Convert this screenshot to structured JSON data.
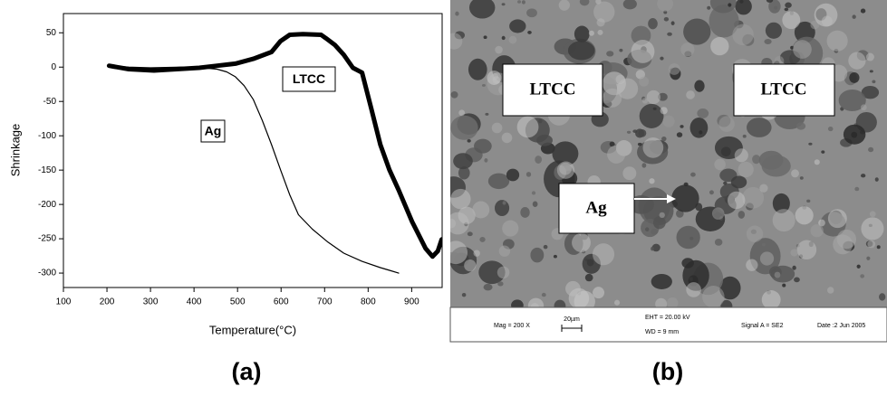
{
  "chart_data": {
    "type": "line",
    "x_label": "Temperature(°C)",
    "y_label": "Shrinkage",
    "xlim": [
      100,
      970
    ],
    "xticks": [
      100,
      200,
      300,
      400,
      500,
      600,
      700,
      800,
      900
    ],
    "ylim": [
      -321,
      78
    ],
    "yticks": [
      50,
      0,
      -50,
      -100,
      -150,
      -200,
      -250,
      -300
    ],
    "series": [
      {
        "name": "LTCC",
        "color": "#000000",
        "x": [
          205,
          214,
          250,
          308,
          360,
          412,
          453,
          495,
          536,
          578,
          599,
          620,
          650,
          692,
          703,
          724,
          744,
          765,
          786,
          807,
          828,
          849,
          870,
          901,
          932,
          948,
          960,
          969
        ],
        "values": [
          2,
          1,
          -3,
          -5,
          -3,
          -1,
          2,
          5,
          12,
          22,
          38,
          47,
          48,
          47,
          42,
          32,
          18,
          -1,
          -8,
          -60,
          -113,
          -150,
          -179,
          -225,
          -264,
          -276,
          -268,
          -251
        ]
      },
      {
        "name": "Ag",
        "color": "#000000",
        "x": [
          205,
          250,
          300,
          370,
          420,
          453,
          475,
          495,
          515,
          536,
          557,
          578,
          599,
          620,
          640,
          672,
          708,
          744,
          786,
          828,
          849,
          870
        ],
        "values": [
          2,
          0,
          -1,
          0,
          -1,
          -3,
          -7,
          -14,
          -27,
          -47,
          -78,
          -113,
          -150,
          -186,
          -215,
          -236,
          -255,
          -271,
          -283,
          -292,
          -296,
          -300
        ]
      }
    ]
  },
  "panels": [
    "(a)",
    "(b)"
  ],
  "micrograph": {
    "labels": [
      "LTCC",
      "LTCC",
      "Ag"
    ],
    "info": [
      "Mag =  200 X",
      "20µm",
      "EHT = 20.00 kV",
      "WD =   9 mm",
      "Signal A = SE2",
      "Date :2 Jun 2005"
    ]
  }
}
